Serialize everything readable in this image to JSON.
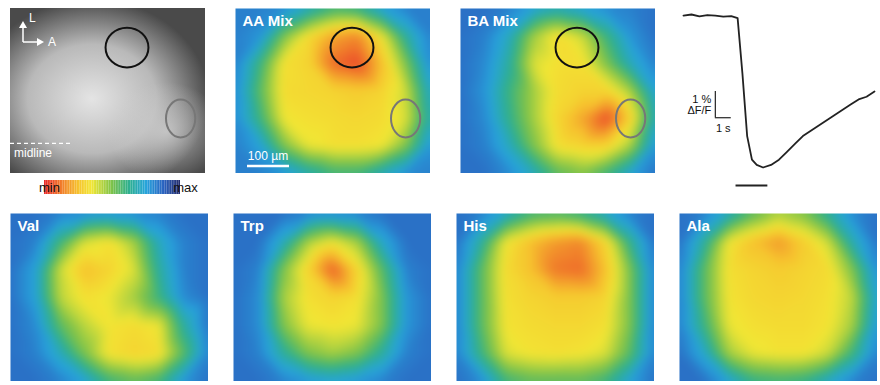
{
  "chart_data": [
    {
      "type": "image",
      "labels": {
        "up": "L",
        "right": "A",
        "midline": "midline"
      }
    },
    {
      "type": "heatmap",
      "title": "AA Mix",
      "scale_bar": {
        "value": 100,
        "label": "100 µm"
      },
      "cells": [
        [
          0.82,
          0.82,
          0.8,
          0.7,
          0.6,
          0.62,
          0.75,
          0.82,
          0.82
        ],
        [
          0.82,
          0.78,
          0.5,
          0.32,
          0.2,
          0.15,
          0.35,
          0.65,
          0.82
        ],
        [
          0.82,
          0.6,
          0.33,
          0.3,
          0.1,
          0.05,
          0.25,
          0.5,
          0.8
        ],
        [
          0.8,
          0.55,
          0.32,
          0.31,
          0.3,
          0.28,
          0.3,
          0.4,
          0.72
        ],
        [
          0.8,
          0.6,
          0.35,
          0.33,
          0.32,
          0.31,
          0.32,
          0.38,
          0.68
        ],
        [
          0.82,
          0.75,
          0.5,
          0.36,
          0.33,
          0.33,
          0.35,
          0.5,
          0.78
        ],
        [
          0.82,
          0.82,
          0.78,
          0.68,
          0.6,
          0.6,
          0.7,
          0.8,
          0.82
        ]
      ]
    },
    {
      "type": "heatmap",
      "title": "BA Mix",
      "cells": [
        [
          0.85,
          0.85,
          0.82,
          0.75,
          0.7,
          0.75,
          0.8,
          0.82,
          0.85
        ],
        [
          0.85,
          0.82,
          0.7,
          0.45,
          0.32,
          0.4,
          0.6,
          0.78,
          0.85
        ],
        [
          0.85,
          0.8,
          0.65,
          0.38,
          0.33,
          0.33,
          0.5,
          0.7,
          0.82
        ],
        [
          0.85,
          0.78,
          0.6,
          0.45,
          0.32,
          0.3,
          0.3,
          0.45,
          0.75
        ],
        [
          0.85,
          0.8,
          0.62,
          0.45,
          0.3,
          0.2,
          0.05,
          0.3,
          0.7
        ],
        [
          0.85,
          0.82,
          0.7,
          0.5,
          0.33,
          0.3,
          0.3,
          0.45,
          0.78
        ],
        [
          0.85,
          0.85,
          0.8,
          0.7,
          0.55,
          0.5,
          0.6,
          0.75,
          0.85
        ]
      ]
    },
    {
      "type": "line",
      "tick_labels": false,
      "color": "#222222",
      "x": [
        0,
        0.5,
        1,
        1.5,
        2,
        2.5,
        3,
        3.4,
        3.7,
        4,
        4.3,
        4.6,
        5,
        5.5,
        6,
        6.5,
        7,
        7.5,
        8,
        8.5,
        9,
        9.5,
        10,
        10.5,
        11,
        11.5,
        12
      ],
      "values": [
        0,
        0.04,
        -0.03,
        0.02,
        0,
        -0.04,
        -0.02,
        -0.1,
        -2.2,
        -4.6,
        -5.5,
        -5.7,
        -5.8,
        -5.7,
        -5.5,
        -5.2,
        -4.9,
        -4.6,
        -4.4,
        -4.2,
        -4.0,
        -3.8,
        -3.6,
        -3.4,
        -3.2,
        -3.1,
        -2.9
      ],
      "stimulus": [
        3.3,
        5.3
      ],
      "scale_bar": {
        "x": 1,
        "x_label": "1 s",
        "y": 1,
        "y_label": [
          "1 %",
          "ΔF/F"
        ]
      }
    },
    {
      "type": "colorbar",
      "range": [
        0,
        1
      ],
      "ticks": [
        {
          "value": 0,
          "label": "min"
        },
        {
          "value": 1,
          "label": "max"
        }
      ]
    },
    {
      "type": "heatmap",
      "title": "Val",
      "cells": [
        [
          0.85,
          0.85,
          0.82,
          0.8,
          0.78,
          0.8,
          0.82,
          0.85,
          0.85
        ],
        [
          0.85,
          0.82,
          0.6,
          0.38,
          0.33,
          0.45,
          0.7,
          0.82,
          0.85
        ],
        [
          0.85,
          0.75,
          0.4,
          0.25,
          0.3,
          0.38,
          0.65,
          0.82,
          0.85
        ],
        [
          0.85,
          0.75,
          0.42,
          0.33,
          0.36,
          0.45,
          0.6,
          0.8,
          0.85
        ],
        [
          0.85,
          0.8,
          0.55,
          0.42,
          0.34,
          0.32,
          0.35,
          0.65,
          0.85
        ],
        [
          0.85,
          0.82,
          0.7,
          0.5,
          0.33,
          0.3,
          0.32,
          0.55,
          0.82
        ],
        [
          0.85,
          0.85,
          0.82,
          0.75,
          0.6,
          0.55,
          0.6,
          0.78,
          0.85
        ]
      ]
    },
    {
      "type": "heatmap",
      "title": "Trp",
      "cells": [
        [
          0.85,
          0.85,
          0.85,
          0.82,
          0.8,
          0.82,
          0.85,
          0.85,
          0.85
        ],
        [
          0.85,
          0.85,
          0.7,
          0.45,
          0.35,
          0.45,
          0.72,
          0.85,
          0.85
        ],
        [
          0.85,
          0.82,
          0.5,
          0.3,
          0.08,
          0.3,
          0.55,
          0.82,
          0.85
        ],
        [
          0.85,
          0.8,
          0.45,
          0.33,
          0.3,
          0.33,
          0.5,
          0.78,
          0.85
        ],
        [
          0.85,
          0.8,
          0.5,
          0.36,
          0.34,
          0.36,
          0.5,
          0.78,
          0.85
        ],
        [
          0.85,
          0.82,
          0.65,
          0.5,
          0.45,
          0.5,
          0.65,
          0.82,
          0.85
        ],
        [
          0.85,
          0.85,
          0.82,
          0.78,
          0.75,
          0.78,
          0.82,
          0.85,
          0.85
        ]
      ]
    },
    {
      "type": "heatmap",
      "title": "His",
      "cells": [
        [
          0.85,
          0.82,
          0.72,
          0.6,
          0.58,
          0.62,
          0.72,
          0.82,
          0.85
        ],
        [
          0.85,
          0.65,
          0.35,
          0.25,
          0.18,
          0.15,
          0.3,
          0.62,
          0.85
        ],
        [
          0.82,
          0.55,
          0.32,
          0.25,
          0.12,
          0.1,
          0.25,
          0.5,
          0.82
        ],
        [
          0.82,
          0.55,
          0.33,
          0.3,
          0.28,
          0.28,
          0.3,
          0.5,
          0.82
        ],
        [
          0.82,
          0.55,
          0.34,
          0.32,
          0.31,
          0.31,
          0.33,
          0.5,
          0.82
        ],
        [
          0.82,
          0.6,
          0.38,
          0.34,
          0.33,
          0.34,
          0.38,
          0.55,
          0.82
        ],
        [
          0.85,
          0.8,
          0.6,
          0.55,
          0.55,
          0.55,
          0.6,
          0.75,
          0.85
        ]
      ]
    },
    {
      "type": "heatmap",
      "title": "Ala",
      "cells": [
        [
          0.85,
          0.82,
          0.7,
          0.55,
          0.45,
          0.5,
          0.65,
          0.8,
          0.85
        ],
        [
          0.85,
          0.65,
          0.35,
          0.25,
          0.18,
          0.28,
          0.4,
          0.68,
          0.85
        ],
        [
          0.82,
          0.55,
          0.33,
          0.3,
          0.28,
          0.3,
          0.32,
          0.5,
          0.8
        ],
        [
          0.82,
          0.55,
          0.34,
          0.31,
          0.3,
          0.31,
          0.33,
          0.42,
          0.75
        ],
        [
          0.82,
          0.6,
          0.36,
          0.33,
          0.32,
          0.32,
          0.34,
          0.45,
          0.78
        ],
        [
          0.85,
          0.72,
          0.45,
          0.36,
          0.34,
          0.34,
          0.4,
          0.6,
          0.82
        ],
        [
          0.85,
          0.85,
          0.75,
          0.62,
          0.6,
          0.62,
          0.72,
          0.82,
          0.85
        ]
      ]
    }
  ]
}
